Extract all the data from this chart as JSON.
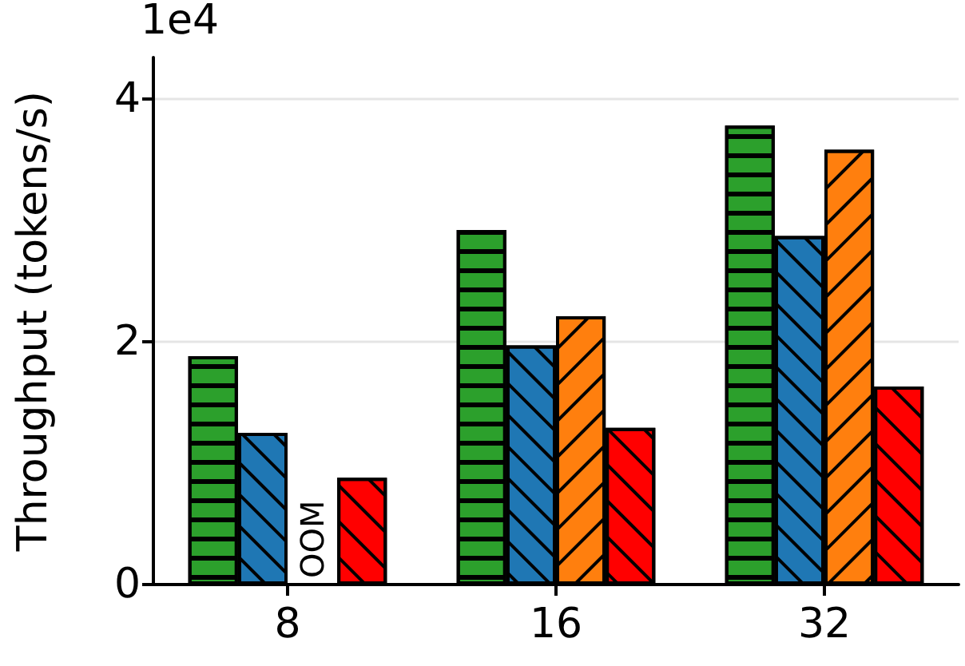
{
  "chart_data": {
    "type": "bar",
    "ylabel": "Throughput (tokens/s)",
    "categories": [
      "8",
      "16",
      "32"
    ],
    "series": [
      {
        "color": "#2ca02c",
        "values": [
          1.88,
          2.92,
          3.78
        ]
      },
      {
        "color": "#1f77b4",
        "values": [
          1.25,
          1.97,
          2.87
        ]
      },
      {
        "color": "#ff7f0e",
        "values": [
          null,
          2.21,
          3.58
        ]
      },
      {
        "color": "#ff0000",
        "values": [
          0.88,
          1.29,
          1.63
        ]
      }
    ],
    "ylim": [
      0,
      4.34
    ],
    "yticks": [
      0,
      2,
      4
    ],
    "grid": "y",
    "annotations": [
      "1e4",
      {
        "text": "OOM",
        "x": "8",
        "y": 0
      }
    ]
  }
}
